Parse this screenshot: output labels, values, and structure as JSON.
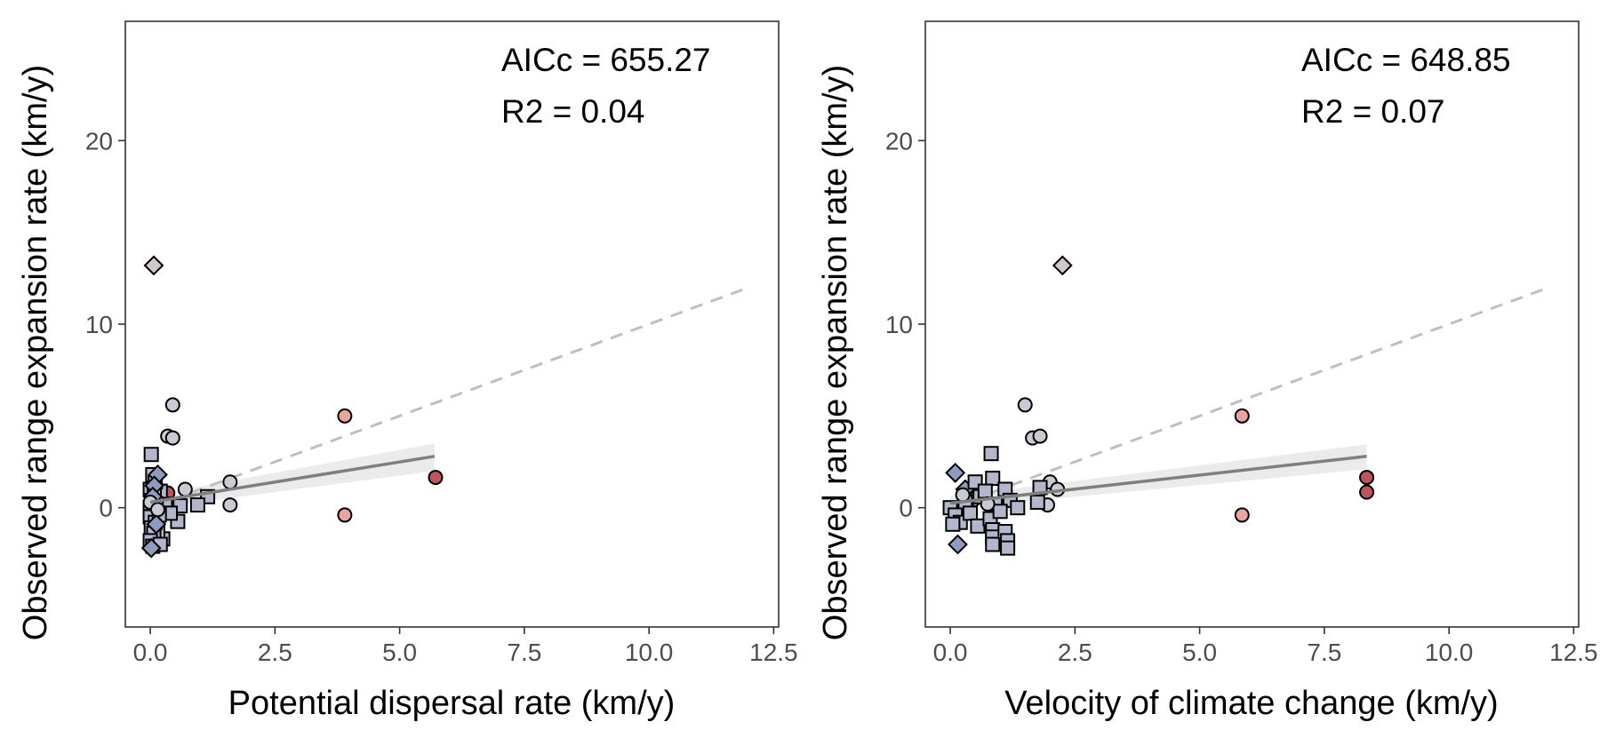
{
  "chart_data": [
    {
      "type": "scatter",
      "xlabel": "Potential dispersal rate (km/y)",
      "ylabel": "Observed range expansion rate (km/y)",
      "xlim": [
        -0.5,
        12.6
      ],
      "ylim": [
        -6.5,
        26.5
      ],
      "xticks": [
        0,
        2.5,
        5,
        7.5,
        10,
        12.5
      ],
      "xtick_labels": [
        "0.0",
        "2.5",
        "5.0",
        "7.5",
        "10.0",
        "12.5"
      ],
      "yticks": [
        0,
        10,
        20
      ],
      "ytick_labels": [
        "0",
        "10",
        "20"
      ],
      "grid": false,
      "annotations": [
        "AICc = 655.27",
        "R2 = 0.04"
      ],
      "fit_line": {
        "x": [
          0,
          5.7
        ],
        "y": [
          0.3,
          2.8
        ],
        "color": "#7f7f7f",
        "band": [
          [
            0.0,
            -0.05,
            0.65
          ],
          [
            5.7,
            2.0,
            3.5
          ]
        ]
      },
      "reference_line": {
        "x": [
          0,
          12
        ],
        "y": [
          0,
          12
        ],
        "color": "#bfbfbf",
        "dash": true
      },
      "points": [
        {
          "x": 0.07,
          "y": 13.2,
          "shape": "diamond",
          "color": "#d0c8cc"
        },
        {
          "x": 0.45,
          "y": 5.6,
          "shape": "circle",
          "color": "#c9cad3"
        },
        {
          "x": 0.35,
          "y": 3.9,
          "shape": "circle",
          "color": "#c9cad3"
        },
        {
          "x": 0.45,
          "y": 3.8,
          "shape": "circle",
          "color": "#c9cad3"
        },
        {
          "x": 3.9,
          "y": 5.0,
          "shape": "circle",
          "color": "#e8a49e"
        },
        {
          "x": 5.72,
          "y": 1.65,
          "shape": "circle",
          "color": "#c0545c"
        },
        {
          "x": 3.9,
          "y": -0.4,
          "shape": "circle",
          "color": "#e8a49e"
        },
        {
          "x": 1.6,
          "y": 1.4,
          "shape": "circle",
          "color": "#c9cad3"
        },
        {
          "x": 1.6,
          "y": 0.15,
          "shape": "circle",
          "color": "#c9cad3"
        },
        {
          "x": 0.7,
          "y": 1.0,
          "shape": "circle",
          "color": "#c9cad3"
        },
        {
          "x": 0.35,
          "y": 0.8,
          "shape": "circle",
          "color": "#c0545c"
        },
        {
          "x": 0.2,
          "y": 0.55,
          "shape": "circle",
          "color": "#c0545c"
        },
        {
          "x": 1.15,
          "y": 0.6,
          "shape": "square",
          "color": "#b2b7cc"
        },
        {
          "x": 0.95,
          "y": 0.15,
          "shape": "square",
          "color": "#b2b7cc"
        },
        {
          "x": 0.55,
          "y": -0.75,
          "shape": "square",
          "color": "#b2b7cc"
        },
        {
          "x": 0.6,
          "y": 0.1,
          "shape": "square",
          "color": "#b2b7cc"
        },
        {
          "x": 0.3,
          "y": 0.2,
          "shape": "square",
          "color": "#b2b7cc"
        },
        {
          "x": 0.4,
          "y": -0.3,
          "shape": "square",
          "color": "#b2b7cc"
        },
        {
          "x": 0.25,
          "y": -1.7,
          "shape": "square",
          "color": "#b2b7cc"
        },
        {
          "x": 0.15,
          "y": -1.3,
          "shape": "square",
          "color": "#b2b7cc"
        },
        {
          "x": 0.2,
          "y": 0.9,
          "shape": "square",
          "color": "#b2b7cc"
        },
        {
          "x": 0.02,
          "y": 2.9,
          "shape": "square",
          "color": "#b2b7cc"
        },
        {
          "x": 0.05,
          "y": 1.8,
          "shape": "square",
          "color": "#b2b7cc"
        },
        {
          "x": 0.1,
          "y": 1.4,
          "shape": "square",
          "color": "#b2b7cc"
        },
        {
          "x": 0.0,
          "y": 1.0,
          "shape": "square",
          "color": "#b2b7cc"
        },
        {
          "x": 0.08,
          "y": 0.7,
          "shape": "square",
          "color": "#b2b7cc"
        },
        {
          "x": 0.02,
          "y": 0.4,
          "shape": "square",
          "color": "#b2b7cc"
        },
        {
          "x": 0.12,
          "y": 0.2,
          "shape": "square",
          "color": "#b2b7cc"
        },
        {
          "x": 0.0,
          "y": 0.0,
          "shape": "square",
          "color": "#b2b7cc"
        },
        {
          "x": 0.06,
          "y": -0.2,
          "shape": "square",
          "color": "#b2b7cc"
        },
        {
          "x": 0.0,
          "y": -0.5,
          "shape": "square",
          "color": "#b2b7cc"
        },
        {
          "x": 0.1,
          "y": -0.8,
          "shape": "square",
          "color": "#b2b7cc"
        },
        {
          "x": 0.02,
          "y": -1.1,
          "shape": "square",
          "color": "#b2b7cc"
        },
        {
          "x": 0.07,
          "y": -1.4,
          "shape": "square",
          "color": "#b2b7cc"
        },
        {
          "x": 0.0,
          "y": -1.8,
          "shape": "square",
          "color": "#b2b7cc"
        },
        {
          "x": 0.05,
          "y": -2.1,
          "shape": "square",
          "color": "#b2b7cc"
        },
        {
          "x": 0.18,
          "y": -0.4,
          "shape": "square",
          "color": "#b2b7cc"
        },
        {
          "x": 0.2,
          "y": -2.0,
          "shape": "square",
          "color": "#b2b7cc"
        },
        {
          "x": 0.15,
          "y": 1.8,
          "shape": "diamond",
          "color": "#8e9dbf"
        },
        {
          "x": 0.08,
          "y": 1.2,
          "shape": "diamond",
          "color": "#8e9dbf"
        },
        {
          "x": 0.02,
          "y": -2.2,
          "shape": "diamond",
          "color": "#8e9dbf"
        },
        {
          "x": 0.05,
          "y": 0.6,
          "shape": "diamond",
          "color": "#8e9dbf"
        },
        {
          "x": 0.12,
          "y": -0.9,
          "shape": "diamond",
          "color": "#8e9dbf"
        },
        {
          "x": 0.0,
          "y": 0.3,
          "shape": "circle",
          "color": "#c9cad3"
        },
        {
          "x": 0.15,
          "y": -0.1,
          "shape": "circle",
          "color": "#c9cad3"
        }
      ]
    },
    {
      "type": "scatter",
      "xlabel": "Velocity of climate change (km/y)",
      "ylabel": "Observed range expansion rate (km/y)",
      "xlim": [
        -0.5,
        12.6
      ],
      "ylim": [
        -6.5,
        26.5
      ],
      "xticks": [
        0,
        2.5,
        5,
        7.5,
        10,
        12.5
      ],
      "xtick_labels": [
        "0.0",
        "2.5",
        "5.0",
        "7.5",
        "10.0",
        "12.5"
      ],
      "yticks": [
        0,
        10,
        20
      ],
      "ytick_labels": [
        "0",
        "10",
        "20"
      ],
      "grid": false,
      "annotations": [
        "AICc = 648.85",
        "R2 = 0.07"
      ],
      "fit_line": {
        "x": [
          0,
          8.35
        ],
        "y": [
          0.25,
          2.8
        ],
        "color": "#7f7f7f",
        "band": [
          [
            0.0,
            -0.05,
            0.6
          ],
          [
            8.35,
            2.1,
            3.45
          ]
        ]
      },
      "reference_line": {
        "x": [
          0,
          12
        ],
        "y": [
          0,
          12
        ],
        "color": "#bfbfbf",
        "dash": true
      },
      "points": [
        {
          "x": 2.25,
          "y": 13.2,
          "shape": "diamond",
          "color": "#d0c8cc"
        },
        {
          "x": 1.5,
          "y": 5.6,
          "shape": "circle",
          "color": "#c9cad3"
        },
        {
          "x": 1.65,
          "y": 3.8,
          "shape": "circle",
          "color": "#c9cad3"
        },
        {
          "x": 1.8,
          "y": 3.9,
          "shape": "circle",
          "color": "#c9cad3"
        },
        {
          "x": 2.0,
          "y": 1.4,
          "shape": "circle",
          "color": "#c9cad3"
        },
        {
          "x": 2.15,
          "y": 1.0,
          "shape": "circle",
          "color": "#c9cad3"
        },
        {
          "x": 1.95,
          "y": 0.15,
          "shape": "circle",
          "color": "#c9cad3"
        },
        {
          "x": 5.85,
          "y": 5.0,
          "shape": "circle",
          "color": "#e8a49e"
        },
        {
          "x": 5.85,
          "y": -0.4,
          "shape": "circle",
          "color": "#e8a49e"
        },
        {
          "x": 8.35,
          "y": 1.65,
          "shape": "circle",
          "color": "#c0545c"
        },
        {
          "x": 8.35,
          "y": 0.85,
          "shape": "circle",
          "color": "#c0545c"
        },
        {
          "x": 0.1,
          "y": 1.9,
          "shape": "diamond",
          "color": "#8e9dbf"
        },
        {
          "x": 0.3,
          "y": 1.0,
          "shape": "diamond",
          "color": "#8e9dbf"
        },
        {
          "x": 0.15,
          "y": -2.0,
          "shape": "diamond",
          "color": "#8e9dbf"
        },
        {
          "x": 0.5,
          "y": 0.5,
          "shape": "diamond",
          "color": "#8e9dbf"
        },
        {
          "x": 0.82,
          "y": 2.95,
          "shape": "square",
          "color": "#b2b7cc"
        },
        {
          "x": 0.5,
          "y": 1.4,
          "shape": "square",
          "color": "#b2b7cc"
        },
        {
          "x": 0.85,
          "y": 1.6,
          "shape": "square",
          "color": "#b2b7cc"
        },
        {
          "x": 1.1,
          "y": 1.0,
          "shape": "square",
          "color": "#b2b7cc"
        },
        {
          "x": 1.8,
          "y": 1.1,
          "shape": "square",
          "color": "#b2b7cc"
        },
        {
          "x": 1.75,
          "y": 0.3,
          "shape": "square",
          "color": "#b2b7cc"
        },
        {
          "x": 0.3,
          "y": 0.3,
          "shape": "square",
          "color": "#b2b7cc"
        },
        {
          "x": 0.6,
          "y": 0.6,
          "shape": "square",
          "color": "#b2b7cc"
        },
        {
          "x": 0.9,
          "y": 0.2,
          "shape": "square",
          "color": "#b2b7cc"
        },
        {
          "x": 1.2,
          "y": 0.4,
          "shape": "square",
          "color": "#b2b7cc"
        },
        {
          "x": 1.35,
          "y": 0.0,
          "shape": "square",
          "color": "#b2b7cc"
        },
        {
          "x": 0.0,
          "y": 0.0,
          "shape": "square",
          "color": "#b2b7cc"
        },
        {
          "x": 0.1,
          "y": -0.4,
          "shape": "square",
          "color": "#b2b7cc"
        },
        {
          "x": 0.2,
          "y": -0.8,
          "shape": "square",
          "color": "#b2b7cc"
        },
        {
          "x": 0.4,
          "y": -0.3,
          "shape": "square",
          "color": "#b2b7cc"
        },
        {
          "x": 0.55,
          "y": -1.0,
          "shape": "square",
          "color": "#b2b7cc"
        },
        {
          "x": 0.8,
          "y": -0.6,
          "shape": "square",
          "color": "#b2b7cc"
        },
        {
          "x": 0.85,
          "y": -1.2,
          "shape": "square",
          "color": "#b2b7cc"
        },
        {
          "x": 0.85,
          "y": -1.6,
          "shape": "square",
          "color": "#b2b7cc"
        },
        {
          "x": 0.85,
          "y": -2.0,
          "shape": "square",
          "color": "#b2b7cc"
        },
        {
          "x": 1.1,
          "y": -1.3,
          "shape": "square",
          "color": "#b2b7cc"
        },
        {
          "x": 1.15,
          "y": -1.8,
          "shape": "square",
          "color": "#b2b7cc"
        },
        {
          "x": 1.15,
          "y": -2.2,
          "shape": "square",
          "color": "#b2b7cc"
        },
        {
          "x": 1.0,
          "y": -0.2,
          "shape": "square",
          "color": "#b2b7cc"
        },
        {
          "x": 0.7,
          "y": 0.9,
          "shape": "square",
          "color": "#b2b7cc"
        },
        {
          "x": 0.05,
          "y": -0.9,
          "shape": "square",
          "color": "#b2b7cc"
        },
        {
          "x": 0.25,
          "y": 0.7,
          "shape": "circle",
          "color": "#c9cad3"
        },
        {
          "x": 0.75,
          "y": 0.2,
          "shape": "circle",
          "color": "#c9cad3"
        }
      ]
    }
  ]
}
